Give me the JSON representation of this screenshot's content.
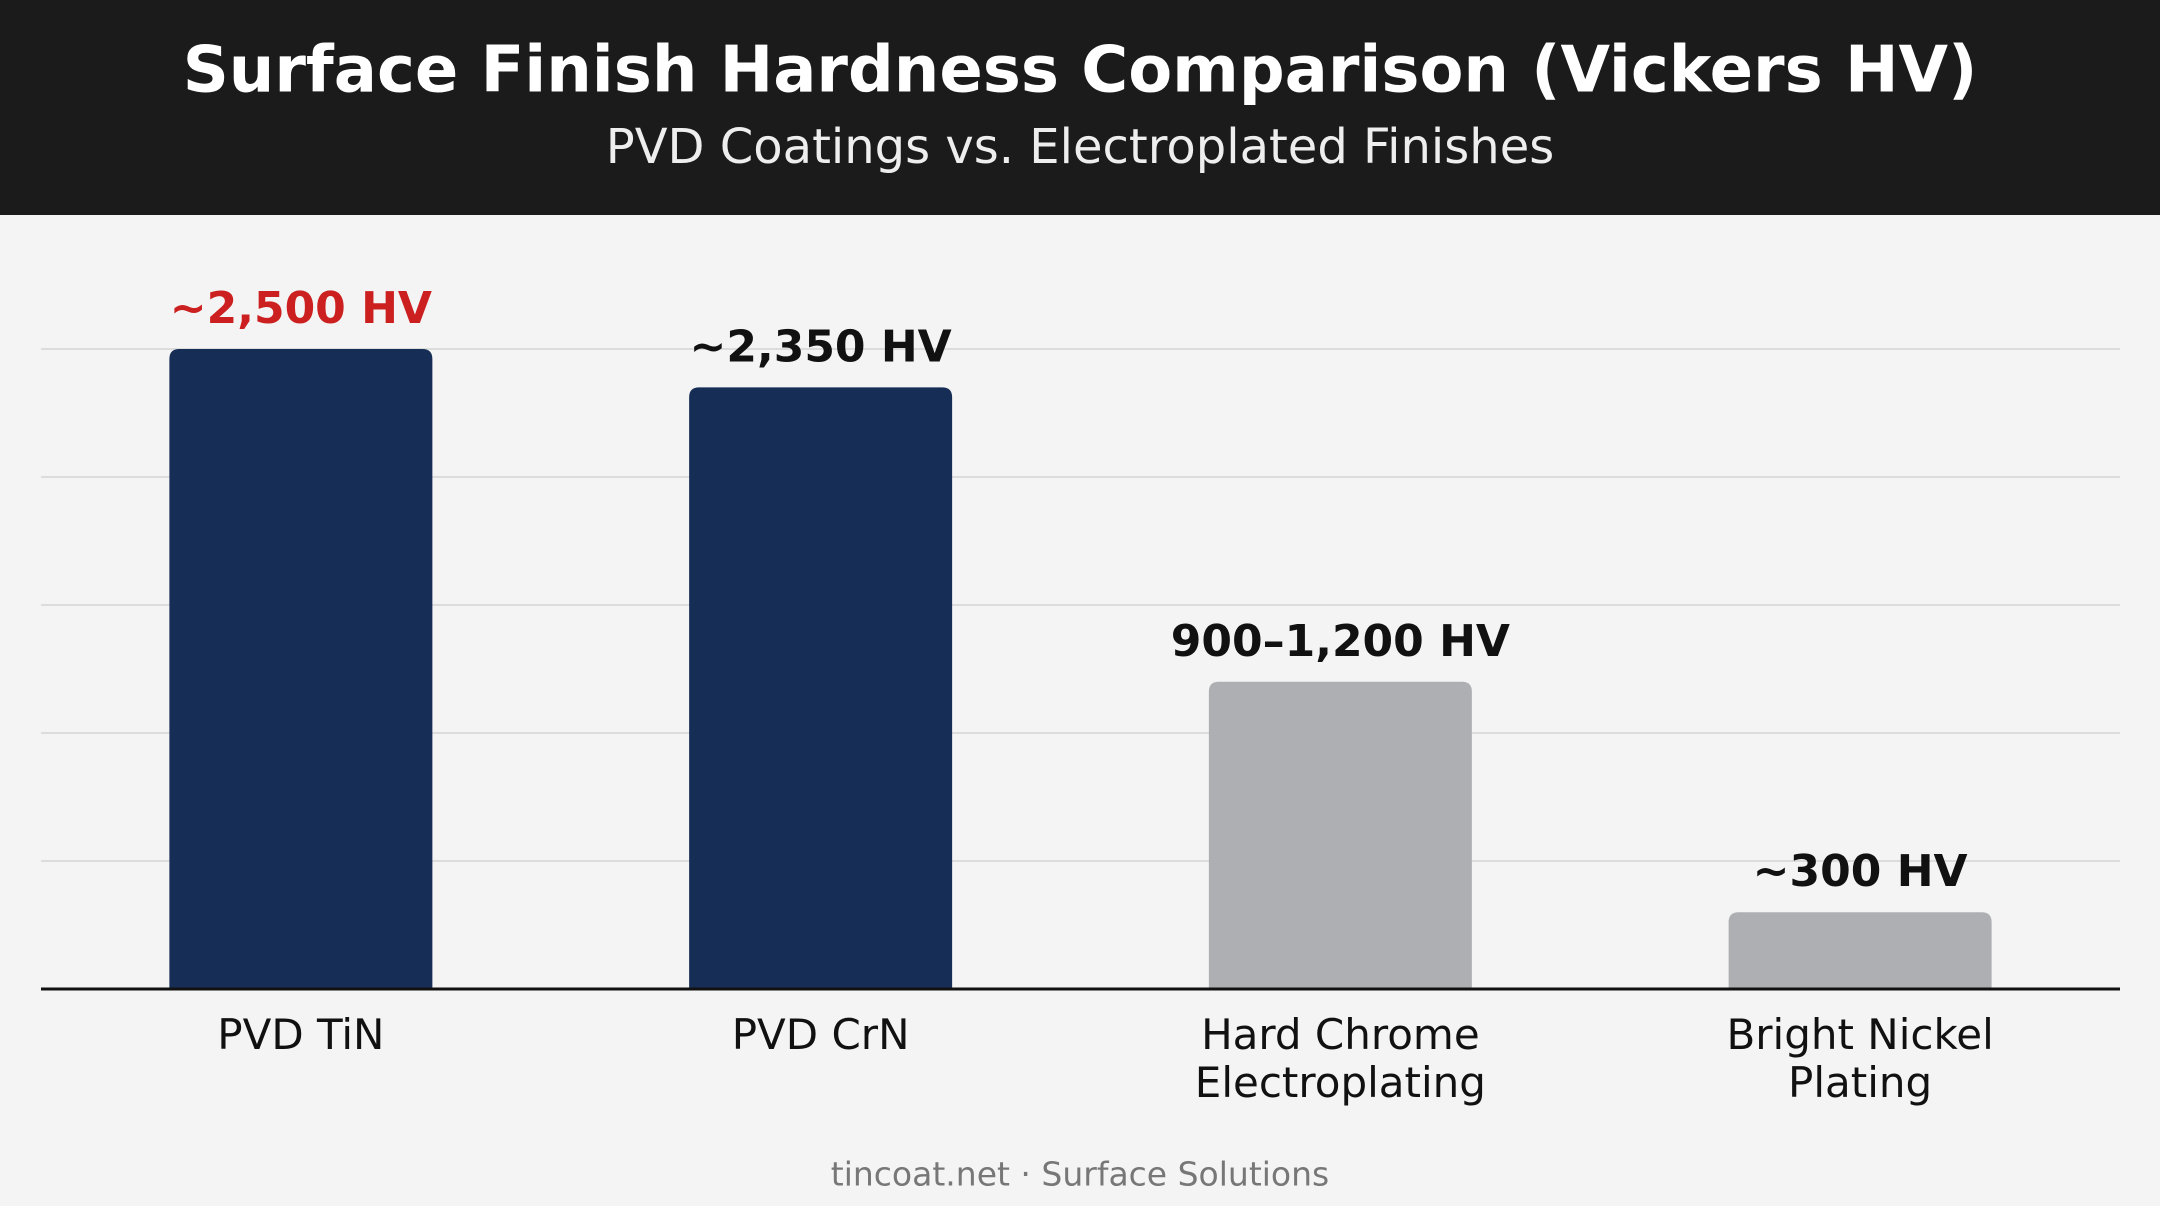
{
  "chart_data": {
    "type": "bar",
    "title": "Surface Finish Hardness Comparison (Vickers HV)",
    "subtitle": "PVD Coatings vs. Electroplated Finishes",
    "categories": [
      "PVD TiN",
      "PVD CrN",
      "Hard Chrome Electroplating",
      "Bright Nickel Plating"
    ],
    "values": [
      2500,
      2350,
      1200,
      300
    ],
    "value_labels": [
      "~2,500 HV",
      "~2,350 HV",
      "900–1,200 HV",
      "~300 HV"
    ],
    "colors": [
      "#162d55",
      "#162d55",
      "#aeafb2",
      "#aeafb2"
    ],
    "label_colors": [
      "#cc1f1f",
      "#111111",
      "#111111",
      "#111111"
    ],
    "ylim": [
      0,
      2500
    ],
    "yticks": [
      0,
      500,
      1000,
      1500,
      2000,
      2500
    ],
    "grid": true
  },
  "footer": "tincoat.net · Surface Solutions"
}
